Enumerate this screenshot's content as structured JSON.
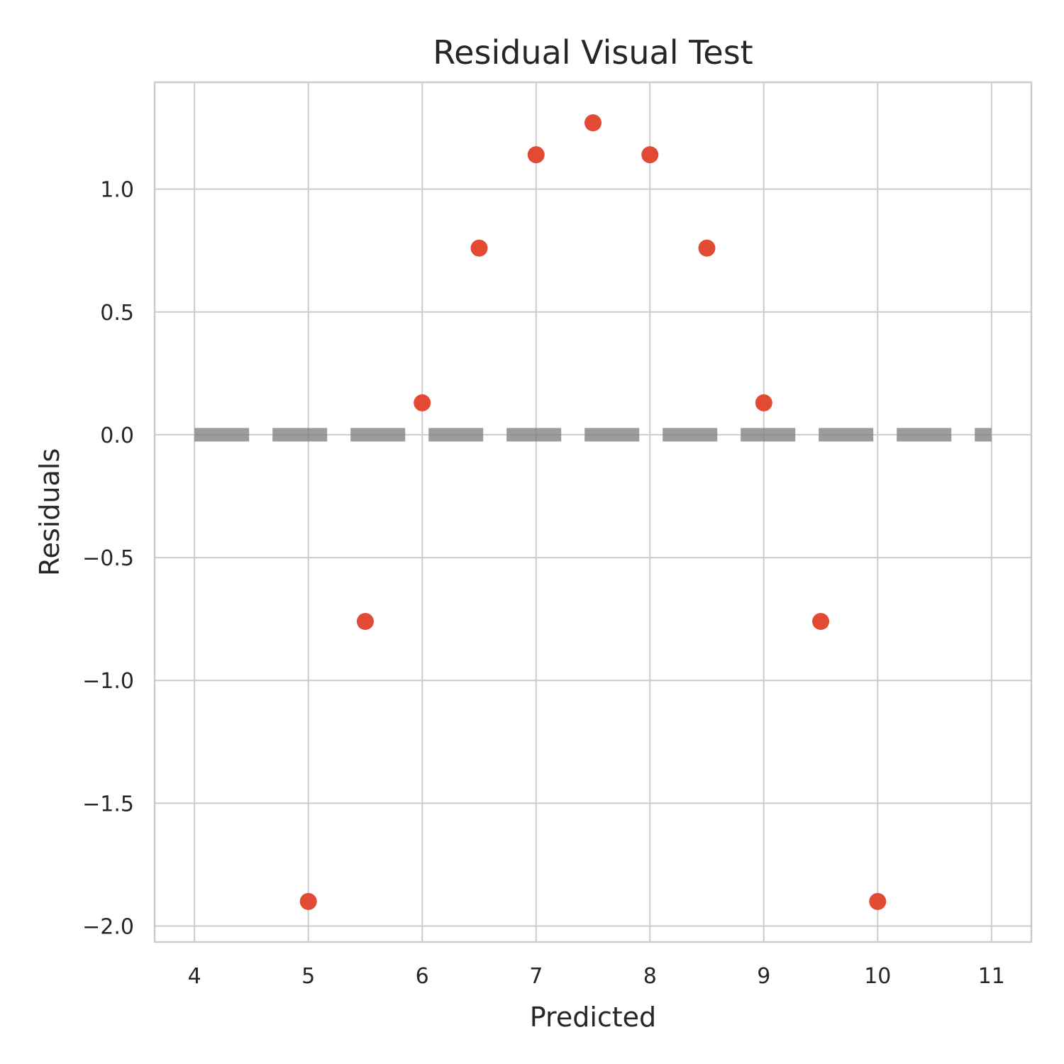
{
  "chart_data": {
    "type": "scatter",
    "title": "Residual Visual Test",
    "xlabel": "Predicted",
    "ylabel": "Residuals",
    "xlim": [
      3.65,
      11.35
    ],
    "ylim": [
      -2.065,
      1.435
    ],
    "xticks": [
      4,
      5,
      6,
      7,
      8,
      9,
      10,
      11
    ],
    "yticks": [
      -2.0,
      -1.5,
      -1.0,
      -0.5,
      0.0,
      0.5,
      1.0
    ],
    "grid": true,
    "series": [
      {
        "x": [
          5,
          5.5,
          6,
          6.5,
          7,
          7.5,
          8,
          8.5,
          9,
          9.5,
          10
        ],
        "y": [
          -1.9,
          -0.76,
          0.13,
          0.76,
          1.14,
          1.27,
          1.14,
          0.76,
          0.13,
          -0.76,
          -1.9
        ],
        "color": "#e24a33"
      }
    ],
    "reference_line": {
      "y": 0.0,
      "x_from": 4,
      "x_to": 11,
      "style": "dashed",
      "color": "#808080"
    },
    "colors": {
      "grid": "#cccccc",
      "frame": "#cccccc",
      "text": "#262626",
      "background": "#ffffff"
    }
  }
}
